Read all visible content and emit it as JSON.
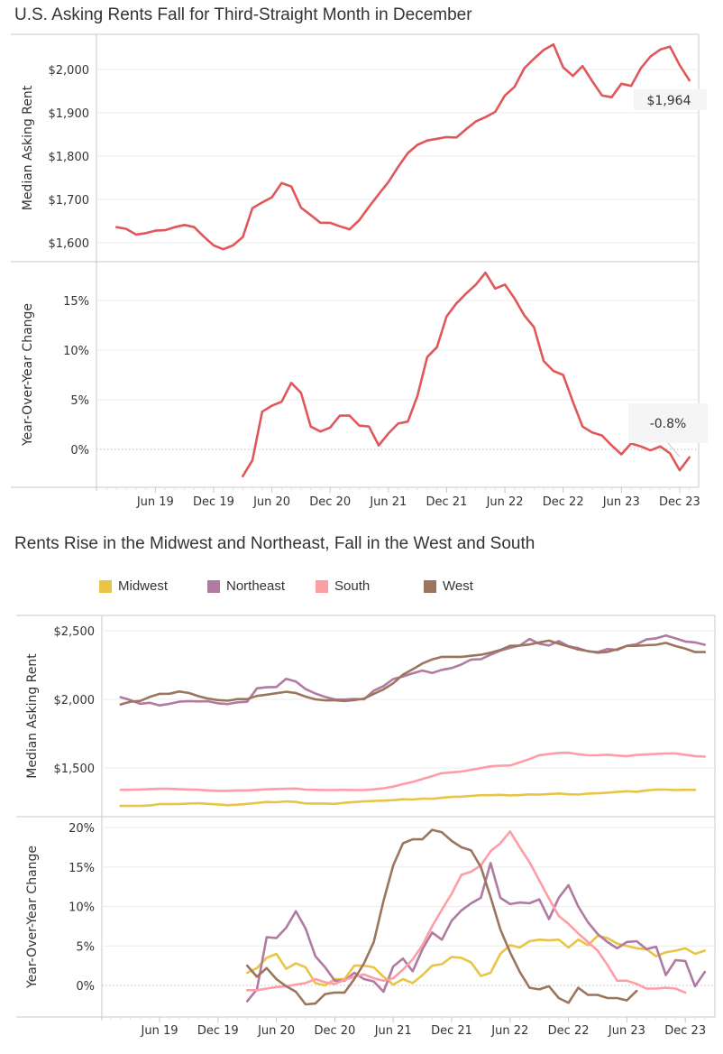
{
  "charts_header": {
    "title_top": "U.S. Asking Rents Fall for Third-Straight Month in December",
    "title_bottom": "Rents Rise in the Midwest and Northeast, Fall in the West and South"
  },
  "legend": [
    {
      "name": "Midwest",
      "color": "#E8C547"
    },
    {
      "name": "Northeast",
      "color": "#B07AA1"
    },
    {
      "name": "South",
      "color": "#FF9DA7"
    },
    {
      "name": "West",
      "color": "#9C755F"
    }
  ],
  "chart_data": [
    {
      "type": "line",
      "title": "U.S. Asking Rents Fall for Third-Straight Month in December",
      "panel": "Median Asking Rent",
      "ylabel": "Median Asking Rent",
      "ylim": [
        1570,
        2060
      ],
      "yticks": [
        "$1,600",
        "$1,700",
        "$1,800",
        "$1,900",
        "$2,000"
      ],
      "ytick_values": [
        1600,
        1700,
        1800,
        1900,
        2000
      ],
      "x_start": "Feb 2019",
      "x_end": "Dec 2023",
      "xticks": [
        "Jun 19",
        "Dec 19",
        "Jun 20",
        "Dec 20",
        "Jun 21",
        "Dec 21",
        "Jun 22",
        "Dec 22",
        "Jun 23",
        "Dec 23"
      ],
      "grid": true,
      "color": "#E15759",
      "annotation": "$1,964",
      "series": [
        {
          "name": "U.S.",
          "start_month_index": 1,
          "values": [
            1636,
            1632,
            1619,
            1622,
            1628,
            1629,
            1636,
            1641,
            1636,
            1614,
            1594,
            1585,
            1594,
            1613,
            1680,
            1693,
            1705,
            1738,
            1730,
            1681,
            1664,
            1646,
            1646,
            1638,
            1631,
            1652,
            1683,
            1712,
            1740,
            1775,
            1807,
            1826,
            1836,
            1840,
            1844,
            1843,
            1862,
            1880,
            1890,
            1902,
            1940,
            1960,
            2003,
            2025,
            2045,
            2058,
            2005,
            1985,
            2008,
            1973,
            1940,
            1936,
            1967,
            1962,
            2003,
            2030,
            2046,
            2053,
            2010,
            1975,
            1964,
            1964
          ]
        }
      ]
    },
    {
      "type": "line",
      "panel": "Year-Over-Year Change",
      "ylabel": "Year-Over-Year Change",
      "ylim": [
        -3.8,
        18.5
      ],
      "yticks": [
        "0%",
        "5%",
        "10%",
        "15%"
      ],
      "ytick_values": [
        0,
        5,
        10,
        15
      ],
      "xticks": [
        "Jun 19",
        "Dec 19",
        "Jun 20",
        "Dec 20",
        "Jun 21",
        "Dec 21",
        "Jun 22",
        "Dec 22",
        "Jun 23",
        "Dec 23"
      ],
      "grid": true,
      "color": "#E15759",
      "annotation": "-0.8%",
      "series": [
        {
          "name": "U.S.",
          "start_month_index": 14,
          "values": [
            -2.7,
            -1.1,
            3.8,
            4.4,
            4.8,
            6.7,
            5.7,
            2.3,
            1.8,
            2.2,
            3.4,
            3.4,
            2.4,
            2.3,
            0.4,
            1.6,
            2.6,
            2.8,
            5.4,
            9.3,
            10.3,
            13.4,
            14.7,
            15.7,
            16.6,
            17.8,
            16.2,
            16.6,
            15.2,
            13.5,
            12.3,
            8.9,
            7.9,
            7.5,
            4.8,
            2.3,
            1.7,
            1.4,
            0.4,
            -0.5,
            0.6,
            0.3,
            -0.1,
            0.3,
            -0.4,
            -2.1,
            -0.8
          ]
        }
      ]
    },
    {
      "type": "line",
      "title": "Rents Rise in the Midwest and Northeast, Fall in the West and South",
      "panel": "Median Asking Rent",
      "ylabel": "Median Asking Rent",
      "ylim": [
        1250,
        2630
      ],
      "yticks": [
        "$1,500",
        "$2,000",
        "$2,500"
      ],
      "ytick_values": [
        1500,
        2000,
        2500
      ],
      "xticks": [
        "Jun 19",
        "Dec 19",
        "Jun 20",
        "Dec 20",
        "Jun 21",
        "Dec 21",
        "Jun 22",
        "Dec 22",
        "Jun 23",
        "Dec 23"
      ],
      "grid": true,
      "legend_position": "top",
      "series": [
        {
          "name": "Midwest",
          "color": "#E8C547",
          "start_month_index": 1,
          "values": [
            1223,
            1224,
            1223,
            1226,
            1237,
            1237,
            1237,
            1241,
            1243,
            1238,
            1234,
            1228,
            1232,
            1238,
            1245,
            1252,
            1250,
            1256,
            1252,
            1241,
            1241,
            1241,
            1238,
            1246,
            1251,
            1256,
            1260,
            1262,
            1265,
            1272,
            1270,
            1276,
            1275,
            1282,
            1289,
            1291,
            1296,
            1301,
            1301,
            1304,
            1300,
            1302,
            1307,
            1305,
            1310,
            1314,
            1308,
            1306,
            1313,
            1315,
            1320,
            1325,
            1330,
            1326,
            1336,
            1342,
            1342,
            1339,
            1341,
            1340
          ]
        },
        {
          "name": "Northeast",
          "color": "#B07AA1",
          "start_month_index": 1,
          "values": [
            2016,
            1995,
            1968,
            1975,
            1956,
            1967,
            1983,
            1987,
            1985,
            1986,
            1971,
            1966,
            1978,
            1983,
            2080,
            2088,
            2090,
            2150,
            2130,
            2075,
            2043,
            2018,
            2000,
            1999,
            2003,
            2000,
            2063,
            2097,
            2148,
            2167,
            2190,
            2210,
            2192,
            2215,
            2228,
            2254,
            2290,
            2293,
            2325,
            2355,
            2375,
            2393,
            2440,
            2405,
            2393,
            2425,
            2387,
            2374,
            2350,
            2345,
            2367,
            2360,
            2390,
            2402,
            2437,
            2445,
            2465,
            2445,
            2422,
            2415,
            2398
          ]
        },
        {
          "name": "Northeast_tail",
          "color": "#B07AA1",
          "values": []
        },
        {
          "name": "South",
          "color": "#FF9DA7",
          "start_month_index": 1,
          "values": [
            1341,
            1341,
            1343,
            1346,
            1348,
            1348,
            1345,
            1343,
            1341,
            1336,
            1333,
            1333,
            1336,
            1336,
            1340,
            1344,
            1347,
            1349,
            1350,
            1342,
            1340,
            1339,
            1339,
            1340,
            1339,
            1339,
            1344,
            1351,
            1364,
            1382,
            1398,
            1420,
            1440,
            1462,
            1468,
            1474,
            1486,
            1499,
            1512,
            1516,
            1518,
            1541,
            1565,
            1593,
            1601,
            1609,
            1611,
            1600,
            1593,
            1592,
            1597,
            1590,
            1586,
            1595,
            1598,
            1602,
            1605,
            1606,
            1596,
            1586,
            1583,
            1580
          ]
        },
        {
          "name": "West",
          "color": "#9C755F",
          "start_month_index": 1,
          "values": [
            1963,
            1983,
            1988,
            2018,
            2040,
            2041,
            2057,
            2047,
            2023,
            2005,
            1995,
            1990,
            2002,
            2002,
            2025,
            2034,
            2045,
            2055,
            2046,
            2020,
            2000,
            1993,
            1993,
            1988,
            1995,
            2005,
            2040,
            2073,
            2117,
            2180,
            2220,
            2262,
            2291,
            2310,
            2310,
            2310,
            2318,
            2325,
            2340,
            2360,
            2390,
            2392,
            2400,
            2415,
            2428,
            2405,
            2385,
            2364,
            2352,
            2340,
            2346,
            2365,
            2390,
            2390,
            2395,
            2398,
            2412,
            2388,
            2370,
            2345,
            2345
          ]
        }
      ]
    },
    {
      "type": "line",
      "panel": "Year-Over-Year Change",
      "ylabel": "Year-Over-Year Change",
      "ylim": [
        -3.8,
        20.5
      ],
      "yticks": [
        "0%",
        "5%",
        "10%",
        "15%",
        "20%"
      ],
      "ytick_values": [
        0,
        5,
        10,
        15,
        20
      ],
      "xticks": [
        "Jun 19",
        "Dec 19",
        "Jun 20",
        "Dec 20",
        "Jun 21",
        "Dec 21",
        "Jun 22",
        "Dec 22",
        "Jun 23",
        "Dec 23"
      ],
      "grid": true,
      "series": [
        {
          "name": "Midwest",
          "color": "#E8C547",
          "start_month_index": 14,
          "values": [
            1.6,
            2.2,
            3.5,
            4.0,
            2.1,
            2.8,
            2.3,
            0.3,
            0.0,
            0.8,
            0.8,
            2.5,
            2.5,
            2.3,
            1.1,
            0.1,
            0.8,
            0.3,
            1.3,
            2.5,
            2.7,
            3.6,
            3.5,
            2.9,
            1.2,
            1.6,
            4.0,
            5.1,
            4.8,
            5.6,
            5.8,
            5.7,
            5.8,
            4.8,
            5.8,
            5.1,
            6.3,
            6.0,
            5.3,
            5.0,
            4.7,
            4.6,
            3.7,
            4.2,
            4.4,
            4.7,
            4.0,
            4.4,
            3.6
          ]
        },
        {
          "name": "Northeast",
          "color": "#B07AA1",
          "start_month_index": 14,
          "values": [
            -2.0,
            -0.5,
            6.1,
            6.0,
            7.3,
            9.4,
            7.2,
            3.7,
            2.3,
            0.6,
            0.6,
            1.6,
            0.8,
            0.5,
            -0.8,
            2.4,
            3.4,
            1.8,
            4.6,
            6.7,
            5.8,
            8.2,
            9.5,
            10.4,
            11.1,
            15.5,
            11.1,
            10.3,
            10.5,
            10.4,
            10.9,
            8.4,
            11.1,
            12.7,
            10.0,
            8.0,
            6.5,
            5.5,
            4.7,
            5.5,
            5.6,
            4.6,
            4.9,
            1.3,
            3.2,
            3.1,
            -0.1,
            1.7
          ]
        },
        {
          "name": "South",
          "color": "#FF9DA7",
          "start_month_index": 14,
          "values": [
            -0.6,
            -0.6,
            -0.4,
            -0.2,
            -0.1,
            0.1,
            0.3,
            0.8,
            0.4,
            0.2,
            0.7,
            1.1,
            1.4,
            0.9,
            0.6,
            0.9,
            2.0,
            3.3,
            5.1,
            7.5,
            9.6,
            11.6,
            14.0,
            14.4,
            15.2,
            17.0,
            18.0,
            19.5,
            17.5,
            15.6,
            13.3,
            11.0,
            8.8,
            7.8,
            6.6,
            5.5,
            4.4,
            2.6,
            0.6,
            0.6,
            0.2,
            -0.4,
            -0.4,
            -0.3,
            -0.4,
            -0.9
          ]
        },
        {
          "name": "West",
          "color": "#9C755F",
          "start_month_index": 14,
          "values": [
            2.5,
            1.1,
            2.2,
            0.8,
            -0.1,
            -0.8,
            -2.4,
            -2.3,
            -1.1,
            -0.9,
            -0.9,
            0.8,
            2.8,
            5.5,
            10.7,
            15.2,
            18.0,
            18.5,
            18.5,
            19.7,
            19.4,
            18.3,
            17.5,
            17.1,
            15.0,
            11.2,
            7.1,
            4.2,
            1.7,
            -0.3,
            -0.5,
            -0.1,
            -1.6,
            -2.2,
            -0.3,
            -1.2,
            -1.2,
            -1.6,
            -1.6,
            -1.9,
            -0.7
          ]
        }
      ]
    }
  ]
}
